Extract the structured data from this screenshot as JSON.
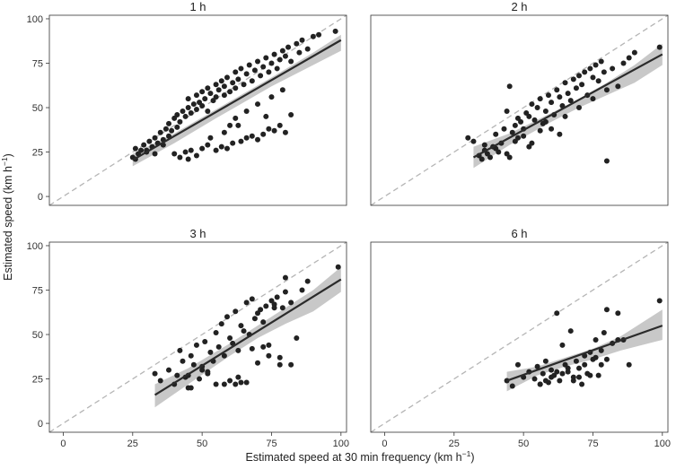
{
  "figure": {
    "ylabel": "Estimated speed (km h",
    "ylabel_sup": "−1",
    "ylabel_close": ")",
    "xlabel": "Estimated speed at 30 min frequency (km h",
    "xlabel_sup": "−1",
    "xlabel_close": ")"
  },
  "colors": {
    "points": "#222222",
    "fit_line": "#2b2b2b",
    "ci_band": "#c8c8c8",
    "identity_line": "#b5b5b5",
    "panel_border": "#333333"
  },
  "chart_data": [
    {
      "type": "scatter",
      "title": "1 h",
      "xlim": [
        -5,
        102
      ],
      "ylim": [
        -5,
        102
      ],
      "xticks": [],
      "yticks": [
        "0",
        "25",
        "50",
        "75",
        "100"
      ],
      "identity_line": true,
      "fit": {
        "x": [
          25,
          100
        ],
        "y": [
          20.5,
          88
        ]
      },
      "ci": {
        "x": [
          25,
          40,
          55,
          65,
          75,
          90,
          100
        ],
        "upper": [
          24,
          35.5,
          49,
          58,
          67,
          81,
          91
        ],
        "lower": [
          17,
          30,
          44,
          53,
          62,
          74,
          82
        ]
      },
      "points": {
        "x": [
          25,
          26,
          27,
          28,
          26,
          29,
          30,
          31,
          32,
          33,
          34,
          35,
          36,
          37,
          38,
          38,
          39,
          40,
          41,
          41,
          42,
          43,
          44,
          45,
          45,
          46,
          47,
          48,
          48,
          49,
          50,
          50,
          51,
          52,
          52,
          53,
          54,
          55,
          55,
          56,
          57,
          58,
          58,
          59,
          60,
          61,
          62,
          62,
          63,
          64,
          65,
          66,
          67,
          68,
          69,
          70,
          71,
          72,
          73,
          74,
          75,
          76,
          77,
          78,
          79,
          80,
          81,
          82,
          84,
          85,
          86,
          88,
          90,
          92,
          98,
          40,
          42,
          44,
          46,
          48,
          50,
          52,
          55,
          57,
          59,
          61,
          64,
          66,
          68,
          70,
          72,
          74,
          76,
          78,
          80,
          82,
          60,
          62,
          66,
          70,
          73,
          75,
          79,
          45,
          53,
          58,
          63,
          30,
          33,
          36
        ],
        "y": [
          22,
          27,
          24,
          26,
          21,
          29,
          25,
          31,
          28,
          33,
          30,
          36,
          32,
          38,
          34,
          41,
          37,
          44,
          39,
          46,
          42,
          48,
          45,
          50,
          55,
          47,
          52,
          49,
          57,
          53,
          51,
          59,
          55,
          61,
          48,
          58,
          54,
          63,
          56,
          60,
          65,
          57,
          62,
          67,
          59,
          64,
          70,
          61,
          66,
          72,
          63,
          69,
          74,
          65,
          71,
          76,
          68,
          73,
          78,
          70,
          75,
          80,
          72,
          77,
          82,
          79,
          84,
          76,
          86,
          81,
          88,
          83,
          90,
          91,
          93,
          24,
          22,
          25,
          26,
          23,
          27,
          29,
          26,
          28,
          27,
          30,
          31,
          33,
          34,
          32,
          35,
          38,
          37,
          40,
          36,
          46,
          40,
          44,
          48,
          52,
          45,
          56,
          60,
          21,
          33,
          36,
          40,
          26,
          24,
          29
        ]
      }
    },
    {
      "type": "scatter",
      "title": "2 h",
      "xlim": [
        -5,
        102
      ],
      "ylim": [
        -5,
        102
      ],
      "xticks": [],
      "yticks": [],
      "identity_line": true,
      "fit": {
        "x": [
          32,
          100
        ],
        "y": [
          22,
          80
        ]
      },
      "ci": {
        "x": [
          32,
          45,
          60,
          70,
          80,
          90,
          100
        ],
        "upper": [
          28,
          35.5,
          47,
          55,
          64,
          74,
          86
        ],
        "lower": [
          16,
          29,
          42,
          50,
          57,
          64,
          74
        ]
      },
      "points": {
        "x": [
          30,
          32,
          34,
          35,
          36,
          37,
          38,
          39,
          40,
          41,
          42,
          43,
          44,
          45,
          46,
          47,
          48,
          48,
          49,
          50,
          51,
          52,
          53,
          54,
          55,
          56,
          57,
          58,
          59,
          60,
          61,
          62,
          63,
          64,
          65,
          66,
          67,
          68,
          69,
          70,
          71,
          72,
          73,
          74,
          75,
          76,
          77,
          78,
          79,
          80,
          82,
          84,
          86,
          88,
          90,
          99,
          36,
          40,
          44,
          47,
          50,
          53,
          56,
          60,
          65,
          70,
          75,
          80,
          45,
          52,
          58,
          63
        ],
        "y": [
          33,
          31,
          23,
          21,
          26,
          24,
          22,
          28,
          35,
          25,
          30,
          38,
          48,
          62,
          36,
          40,
          33,
          44,
          42,
          38,
          47,
          45,
          52,
          43,
          50,
          55,
          41,
          48,
          57,
          53,
          46,
          60,
          56,
          51,
          64,
          58,
          54,
          66,
          61,
          68,
          63,
          70,
          57,
          72,
          67,
          74,
          65,
          76,
          70,
          20,
          72,
          62,
          75,
          78,
          81,
          84,
          29,
          27,
          24,
          31,
          34,
          30,
          37,
          38,
          45,
          50,
          55,
          60,
          22,
          28,
          42,
          35
        ]
      }
    },
    {
      "type": "scatter",
      "title": "3 h",
      "xlim": [
        -5,
        102
      ],
      "ylim": [
        -5,
        102
      ],
      "xticks": [
        "0",
        "25",
        "50",
        "75",
        "100"
      ],
      "yticks": [
        "0",
        "25",
        "50",
        "75",
        "100"
      ],
      "identity_line": true,
      "fit": {
        "x": [
          33,
          100
        ],
        "y": [
          16,
          81
        ]
      },
      "ci": {
        "x": [
          33,
          45,
          60,
          70,
          80,
          90,
          100
        ],
        "upper": [
          22,
          31,
          45,
          55,
          65,
          75,
          88
        ],
        "lower": [
          9,
          22,
          38,
          48,
          56,
          63,
          74
        ]
      },
      "points": {
        "x": [
          33,
          35,
          38,
          40,
          41,
          42,
          43,
          44,
          45,
          46,
          47,
          48,
          49,
          50,
          51,
          52,
          53,
          54,
          55,
          56,
          57,
          58,
          59,
          60,
          61,
          62,
          63,
          64,
          65,
          66,
          67,
          68,
          69,
          70,
          71,
          72,
          73,
          74,
          75,
          76,
          77,
          78,
          79,
          80,
          82,
          84,
          86,
          88,
          99,
          45,
          50,
          55,
          60,
          62,
          64,
          66,
          70,
          74,
          78,
          82,
          46,
          52,
          58,
          63,
          68,
          72,
          76,
          80
        ],
        "y": [
          28,
          24,
          30,
          22,
          27,
          41,
          35,
          26,
          20,
          38,
          33,
          44,
          25,
          32,
          46,
          28,
          40,
          35,
          51,
          43,
          56,
          38,
          60,
          48,
          45,
          63,
          26,
          55,
          52,
          68,
          50,
          70,
          59,
          62,
          64,
          57,
          66,
          44,
          69,
          67,
          71,
          33,
          65,
          74,
          68,
          48,
          75,
          80,
          88,
          27,
          30,
          22,
          24,
          22,
          23,
          23,
          34,
          38,
          37,
          33,
          20,
          29,
          22,
          41,
          42,
          43,
          65,
          82
        ]
      }
    },
    {
      "type": "scatter",
      "title": "6 h",
      "xlim": [
        -5,
        102
      ],
      "ylim": [
        -5,
        102
      ],
      "xticks": [
        "0",
        "25",
        "50",
        "75",
        "100"
      ],
      "yticks": [],
      "identity_line": true,
      "fit": {
        "x": [
          44,
          100
        ],
        "y": [
          24,
          55
        ]
      },
      "ci": {
        "x": [
          44,
          55,
          65,
          75,
          85,
          100
        ],
        "upper": [
          29,
          32,
          37,
          42,
          49,
          64
        ],
        "lower": [
          18,
          27,
          32,
          36,
          41,
          47
        ]
      },
      "points": {
        "x": [
          44,
          46,
          48,
          50,
          52,
          54,
          55,
          56,
          57,
          58,
          59,
          60,
          61,
          62,
          63,
          64,
          65,
          66,
          67,
          68,
          69,
          70,
          71,
          72,
          73,
          74,
          75,
          76,
          77,
          78,
          79,
          80,
          82,
          84,
          86,
          88,
          99,
          56,
          58,
          60,
          62,
          64,
          66,
          68,
          70,
          72,
          74,
          76,
          78,
          80,
          84
        ],
        "y": [
          24,
          21,
          33,
          26,
          29,
          25,
          32,
          22,
          28,
          35,
          23,
          30,
          27,
          62,
          24,
          44,
          33,
          29,
          52,
          26,
          35,
          31,
          22,
          38,
          28,
          40,
          36,
          47,
          27,
          33,
          51,
          64,
          45,
          62,
          47,
          33,
          69,
          22,
          24,
          26,
          29,
          28,
          31,
          24,
          26,
          33,
          27,
          37,
          41,
          36,
          47
        ]
      }
    }
  ]
}
